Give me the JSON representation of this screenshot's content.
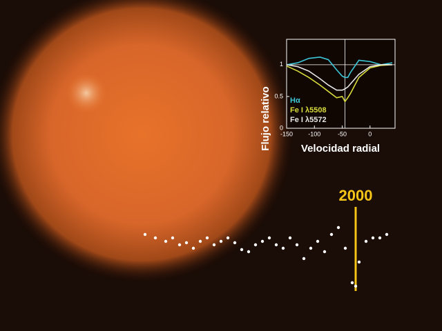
{
  "chart_data": [
    {
      "type": "line",
      "x_label": "Velocidad radial",
      "y_label": "Flujo relativo",
      "x": [
        -150,
        -130,
        -110,
        -90,
        -75,
        -60,
        -50,
        -45,
        -40,
        -35,
        -20,
        0,
        20,
        40
      ],
      "series": [
        {
          "name": "Hα",
          "color": "#3cc8d8",
          "values": [
            1.0,
            1.03,
            1.1,
            1.12,
            1.08,
            0.92,
            0.82,
            0.8,
            0.8,
            0.88,
            1.07,
            1.05,
            1.0,
            1.03
          ]
        },
        {
          "name": "Fe I λ5508",
          "color": "#d8dc3c",
          "values": [
            0.98,
            0.9,
            0.8,
            0.68,
            0.58,
            0.48,
            0.5,
            0.42,
            0.48,
            0.55,
            0.8,
            0.95,
            0.99,
            1.0
          ]
        },
        {
          "name": "Fe I λ5572",
          "color": "#e8e8e8",
          "values": [
            1.0,
            0.97,
            0.9,
            0.78,
            0.68,
            0.6,
            0.6,
            0.62,
            0.65,
            0.7,
            0.85,
            0.97,
            1.0,
            1.0
          ]
        }
      ],
      "xlim": [
        -150,
        45
      ],
      "xticks": [
        -150,
        -100,
        -50,
        0
      ],
      "ylim": [
        0,
        1.4
      ],
      "yticks": [
        0,
        0.5,
        1
      ],
      "hline": 1,
      "vline": -45
    },
    {
      "type": "scatter",
      "annotation": "2000",
      "annotation_x": 61,
      "color": "#ffffff",
      "annotation_color": "#f5c518",
      "x": [
        0,
        3,
        6,
        8,
        10,
        12,
        14,
        16,
        18,
        20,
        22,
        24,
        26,
        28,
        30,
        32,
        34,
        36,
        38,
        40,
        42,
        44,
        46,
        48,
        50,
        52,
        54,
        56,
        58,
        60,
        61,
        62,
        64,
        66,
        68,
        70
      ],
      "values": [
        90,
        85,
        80,
        85,
        75,
        78,
        70,
        80,
        85,
        75,
        80,
        85,
        78,
        68,
        65,
        75,
        80,
        85,
        75,
        70,
        85,
        75,
        55,
        70,
        80,
        65,
        90,
        100,
        70,
        20,
        15,
        50,
        80,
        85,
        85,
        90
      ],
      "xlim": [
        0,
        72
      ],
      "ylim": [
        0,
        100
      ]
    }
  ]
}
